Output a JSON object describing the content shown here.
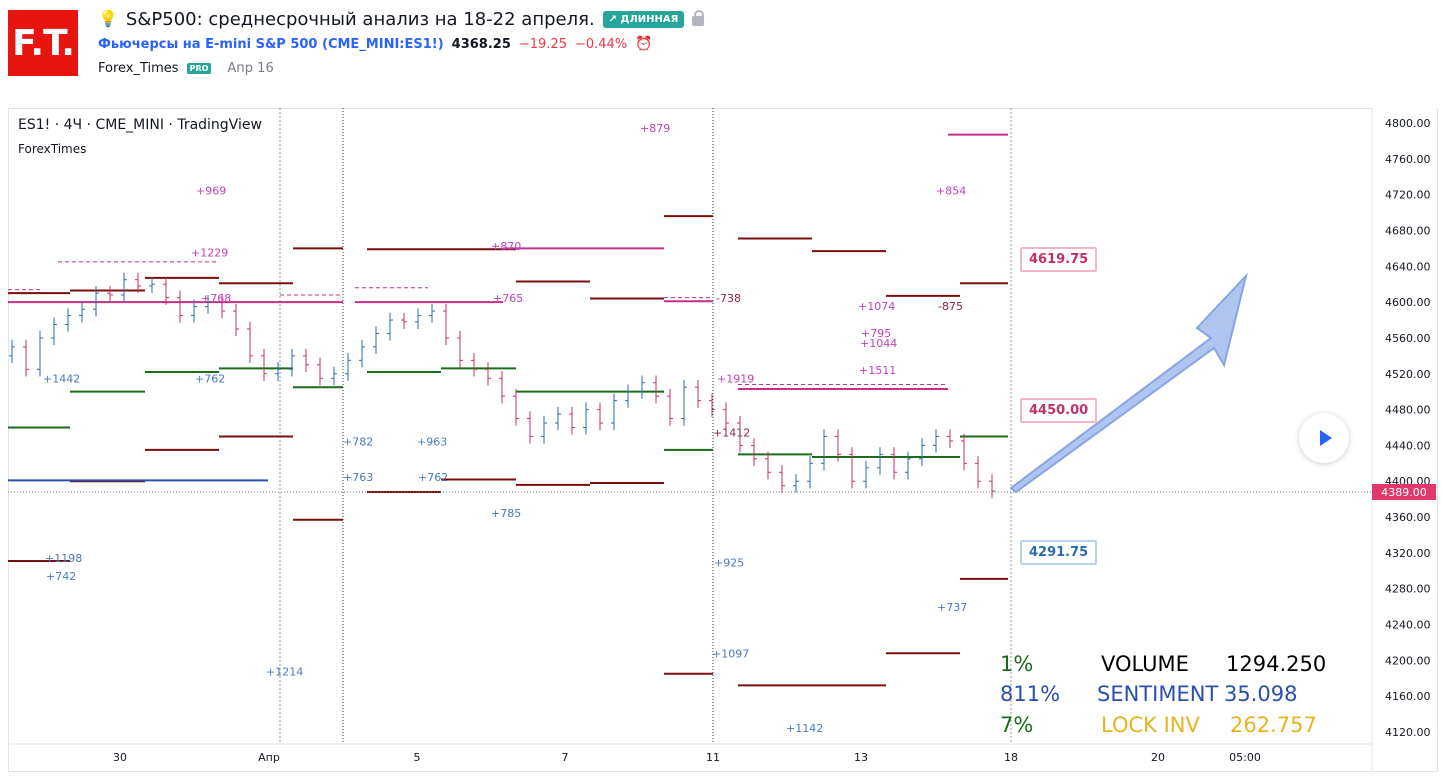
{
  "logo": {
    "text": "F.T."
  },
  "header": {
    "title": "S&P500: среднесрочный анализ на 18-22 апреля.",
    "badge": "↗ ДЛИННАЯ",
    "instrument": "Фьючерсы на E-mini S&P 500 (CME_MINI:ES1!)",
    "price": "4368.25",
    "change": "−19.25",
    "change_pct": "−0.44%",
    "author": "Forex_Times",
    "pro_badge": "PRO",
    "date": "Апр 16"
  },
  "chart": {
    "legend_symbol": "ES1! · 4Ч · CME_MINI · TradingView",
    "legend_author": "ForexTimes",
    "current_price_tag": "4389.00",
    "tag_upper": "4619.75",
    "tag_mid": "4450.00",
    "tag_lower": "4291.75",
    "y_ticks": [
      "4800.00",
      "4760.00",
      "4720.00",
      "4680.00",
      "4640.00",
      "4600.00",
      "4560.00",
      "4520.00",
      "4480.00",
      "4440.00",
      "4400.00",
      "4360.00",
      "4320.00",
      "4280.00",
      "4240.00",
      "4200.00",
      "4160.00",
      "4120.00"
    ],
    "x_ticks": [
      "30",
      "Апр",
      "5",
      "7",
      "11",
      "13",
      "18",
      "20",
      "05:00"
    ],
    "annotations": [
      {
        "t": "+879",
        "c": "#c040c0"
      },
      {
        "t": "+969",
        "c": "#c040c0"
      },
      {
        "t": "+854",
        "c": "#c040c0"
      },
      {
        "t": "+1229",
        "c": "#c040c0"
      },
      {
        "t": "+870",
        "c": "#c040c0"
      },
      {
        "t": "+765",
        "c": "#c040c0"
      },
      {
        "t": "+768",
        "c": "#c040c0"
      },
      {
        "t": "-738",
        "c": "#8b2252"
      },
      {
        "t": "-875",
        "c": "#8b2252"
      },
      {
        "t": "+1074",
        "c": "#c040c0"
      },
      {
        "t": "+795",
        "c": "#c040c0"
      },
      {
        "t": "+1044",
        "c": "#c040c0"
      },
      {
        "t": "+1511",
        "c": "#c040c0"
      },
      {
        "t": "+1919",
        "c": "#c040c0"
      },
      {
        "t": "+1442",
        "c": "#4a78c4"
      },
      {
        "t": "+762",
        "c": "#4a78c4"
      },
      {
        "t": "+782",
        "c": "#4a78c4"
      },
      {
        "t": "+963",
        "c": "#4a78c4"
      },
      {
        "t": "+763",
        "c": "#4a78c4"
      },
      {
        "t": "+762",
        "c": "#4a78c4"
      },
      {
        "t": "+785",
        "c": "#4a78c4"
      },
      {
        "t": "+1198",
        "c": "#4a78c4"
      },
      {
        "t": "+742",
        "c": "#4a78c4"
      },
      {
        "t": "+925",
        "c": "#4a78c4"
      },
      {
        "t": "+737",
        "c": "#4a78c4"
      },
      {
        "t": "+1097",
        "c": "#4a78c4"
      },
      {
        "t": "+1214",
        "c": "#4a78c4"
      },
      {
        "t": "+1142",
        "c": "#4a78c4"
      },
      {
        "t": "+1412",
        "c": "#8b2252"
      }
    ]
  },
  "stats": {
    "pct1": "1%",
    "pct2": "811%",
    "pct3": "7%",
    "volume_label": "VOLUME",
    "volume_value": "1294.250",
    "sentiment_label": "SENTIMENT",
    "sentiment_value": "35.098",
    "lockinv_label": "LOCK INV",
    "lockinv_value": "262.757"
  },
  "colors": {
    "brand_red": "#e8140e",
    "up_candle": "#2a6cae",
    "down_candle": "#c2306a",
    "level_dark": "#7a0f0f",
    "level_green": "#1b6b1b",
    "level_magenta": "#c2308a",
    "arrow": "#7b9be0"
  }
}
